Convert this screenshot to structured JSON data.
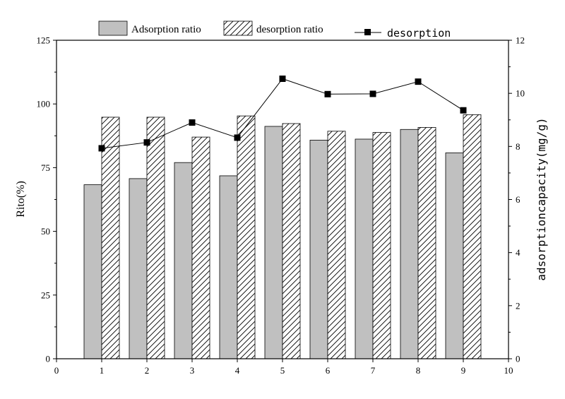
{
  "chart_data": {
    "type": "bar",
    "x": [
      1,
      2,
      3,
      4,
      5,
      6,
      7,
      8,
      9
    ],
    "xlim": [
      0,
      10
    ],
    "x_ticks": [
      0,
      1,
      2,
      3,
      4,
      5,
      6,
      7,
      8,
      9,
      10
    ],
    "ylabel": "Rito(%)",
    "ylim": [
      0,
      125
    ],
    "y_ticks": [
      0,
      25,
      50,
      75,
      100,
      125
    ],
    "y2label": "adsorptioncapacity(mg/g)",
    "y2lim": [
      0,
      12
    ],
    "y2_ticks": [
      0,
      2,
      4,
      6,
      8,
      10,
      12
    ],
    "legend_position": "top",
    "grid": false,
    "series": [
      {
        "name": "Adsorption ratio",
        "type": "bar",
        "axis": "left",
        "color": "#c0c0c0",
        "values": [
          68.3,
          70.7,
          77.0,
          71.8,
          91.2,
          85.8,
          86.2,
          90.0,
          80.8
        ]
      },
      {
        "name": "desorption ratio",
        "type": "bar",
        "axis": "left",
        "pattern": "hatched",
        "values": [
          94.8,
          94.8,
          87.0,
          95.3,
          92.3,
          89.3,
          88.8,
          90.8,
          95.8
        ]
      },
      {
        "name": "desorption",
        "type": "line",
        "axis": "right",
        "marker": "square",
        "color": "#000000",
        "values": [
          7.93,
          8.15,
          8.9,
          8.33,
          10.55,
          9.97,
          9.98,
          10.44,
          9.36
        ]
      }
    ]
  }
}
